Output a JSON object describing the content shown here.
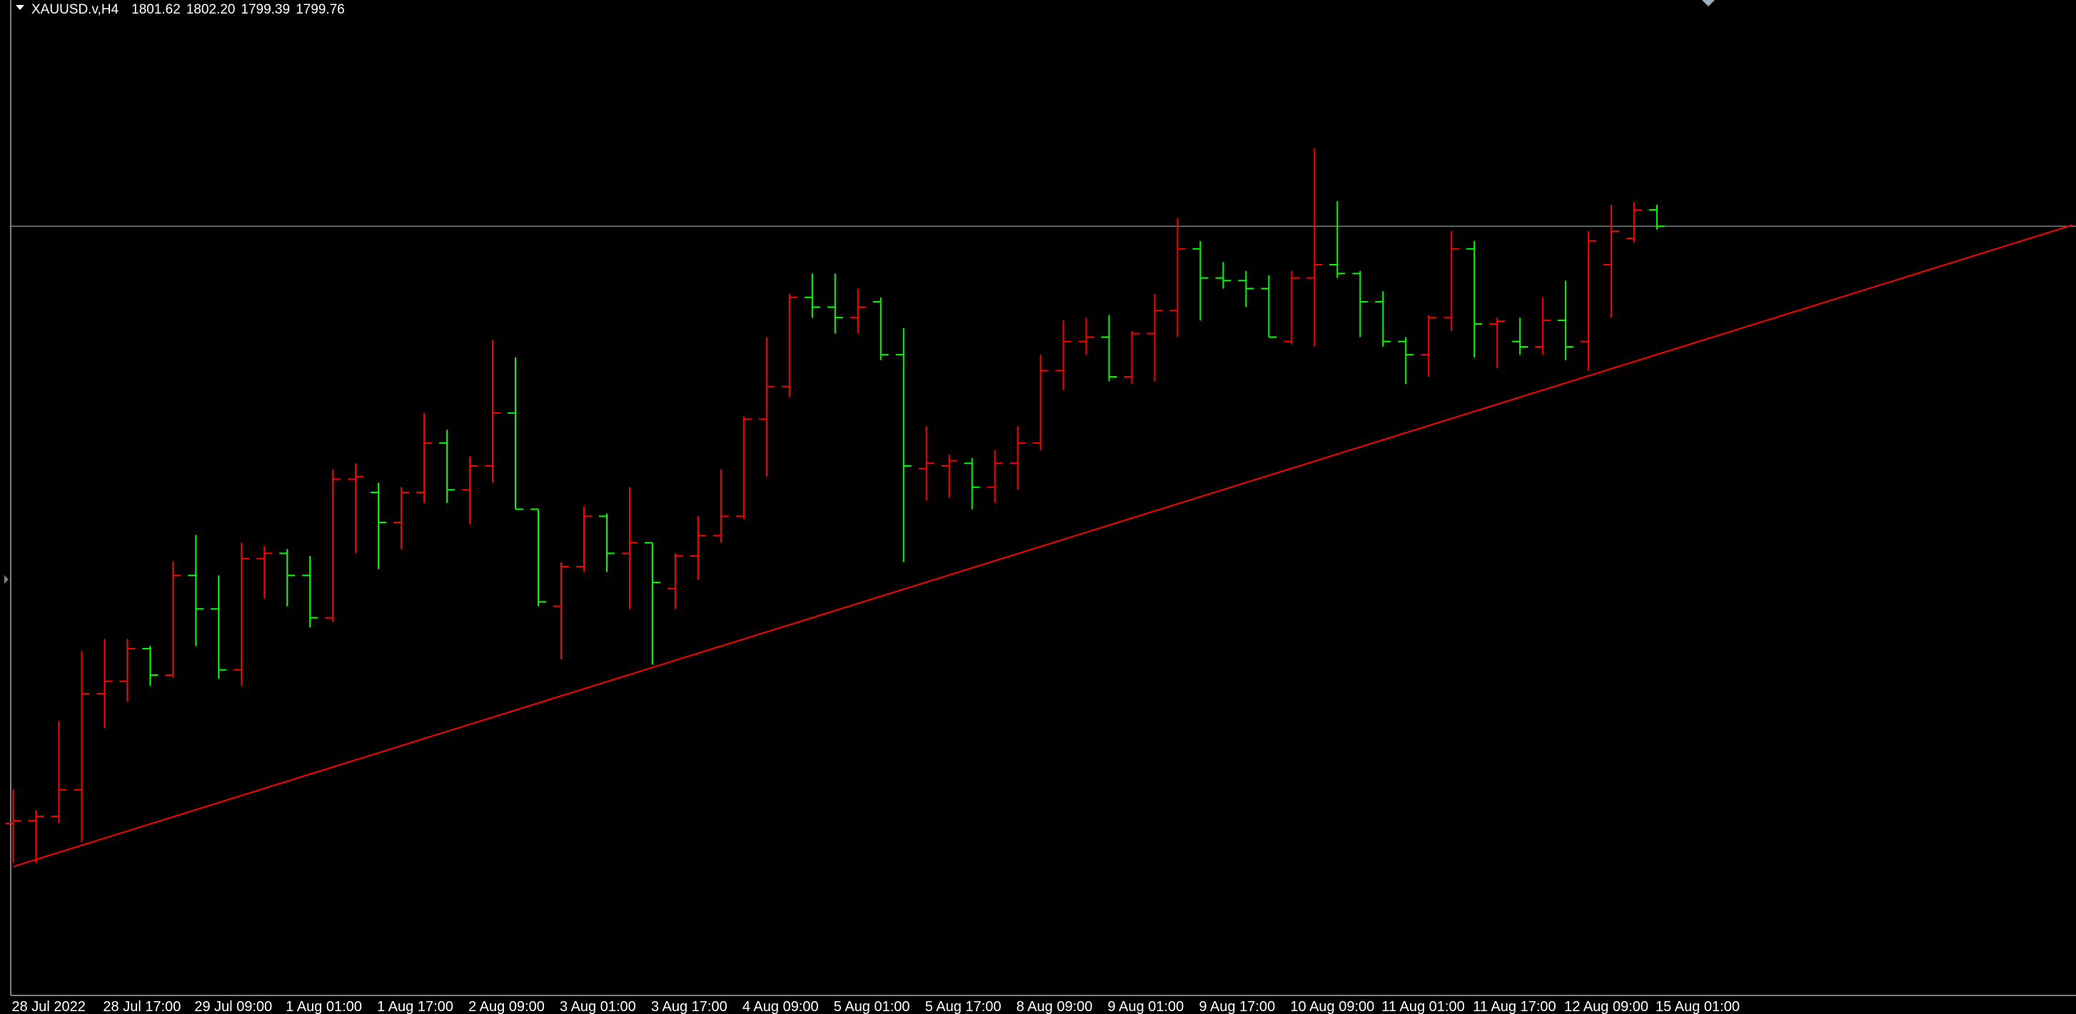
{
  "chart_data": {
    "type": "ohlc",
    "symbol": "XAUUSD.v,H4",
    "header_values": [
      "1801.62",
      "1802.20",
      "1799.39",
      "1799.76"
    ],
    "categories": [
      "28 Jul 2022",
      null,
      null,
      null,
      "28 Jul 17:00",
      null,
      null,
      null,
      "29 Jul 09:00",
      null,
      null,
      null,
      "1 Aug 01:00",
      null,
      null,
      null,
      "1 Aug 17:00",
      null,
      null,
      null,
      "2 Aug 09:00",
      null,
      null,
      null,
      "3 Aug 01:00",
      null,
      null,
      null,
      "3 Aug 17:00",
      null,
      null,
      null,
      "4 Aug 09:00",
      null,
      null,
      null,
      "5 Aug 01:00",
      null,
      null,
      null,
      "5 Aug 17:00",
      null,
      null,
      null,
      "8 Aug 09:00",
      null,
      null,
      null,
      "9 Aug 01:00",
      null,
      null,
      null,
      "9 Aug 17:00",
      null,
      null,
      null,
      "10 Aug 09:00",
      null,
      null,
      null,
      "11 Aug 01:00",
      null,
      null,
      null,
      "11 Aug 17:00",
      null,
      null,
      null,
      "12 Aug 09:00",
      null,
      null,
      null,
      "15 Aug 01:00"
    ],
    "open": [
      1732.1,
      1732.4,
      1732.9,
      1735.9,
      1746.8,
      1748.2,
      1751.9,
      1748.9,
      1760.2,
      1756.4,
      1749.5,
      1762.1,
      1762.7,
      1760.2,
      1755.4,
      1771.1,
      1769.6,
      1766.2,
      1769.6,
      1775.2,
      1769.9,
      1772.6,
      1778.6,
      1767.7,
      1756.7,
      1761.2,
      1766.9,
      1762.7,
      1763.9,
      1758.7,
      1762.4,
      1764.7,
      1766.9,
      1777.9,
      1781.6,
      1791.7,
      1790.6,
      1789.4,
      1791.2,
      1785.2,
      1772.3,
      1772.6,
      1772.9,
      1770.2,
      1772.9,
      1775.2,
      1783.4,
      1786.7,
      1787.2,
      1782.7,
      1787.6,
      1790.2,
      1797.2,
      1793.9,
      1793.6,
      1792.7,
      1786.7,
      1793.9,
      1795.4,
      1794.4,
      1791.2,
      1786.7,
      1785.2,
      1789.4,
      1797.2,
      1788.7,
      1786.7,
      1786.1,
      1789.1,
      1786.7,
      1795.4,
      1798.4,
      1801.62
    ],
    "high": [
      1736.0,
      1733.6,
      1743.7,
      1751.6,
      1753.0,
      1753.0,
      1752.2,
      1761.8,
      1764.8,
      1760.2,
      1763.9,
      1763.5,
      1763.2,
      1762.4,
      1772.2,
      1772.9,
      1770.7,
      1770.2,
      1778.6,
      1776.7,
      1773.7,
      1786.9,
      1784.9,
      1767.7,
      1761.7,
      1768.0,
      1767.2,
      1770.2,
      1763.9,
      1762.7,
      1766.9,
      1772.2,
      1778.2,
      1787.2,
      1792.1,
      1794.4,
      1794.4,
      1792.7,
      1791.7,
      1788.2,
      1777.1,
      1773.9,
      1773.5,
      1774.4,
      1777.1,
      1785.2,
      1789.1,
      1789.4,
      1789.7,
      1787.9,
      1792.1,
      1800.7,
      1798.1,
      1795.7,
      1794.7,
      1794.2,
      1794.7,
      1808.6,
      1802.6,
      1794.7,
      1792.4,
      1787.2,
      1789.7,
      1799.2,
      1798.1,
      1789.4,
      1789.4,
      1791.7,
      1793.6,
      1799.2,
      1802.2,
      1802.5,
      1802.2
    ],
    "low": [
      1727.6,
      1727.6,
      1732.1,
      1730.0,
      1742.9,
      1745.9,
      1747.7,
      1748.6,
      1752.2,
      1748.5,
      1747.7,
      1757.6,
      1756.7,
      1754.3,
      1754.9,
      1762.7,
      1760.9,
      1763.2,
      1768.4,
      1768.4,
      1766.0,
      1770.7,
      1767.7,
      1756.7,
      1750.7,
      1760.6,
      1760.6,
      1756.4,
      1750.1,
      1756.4,
      1759.7,
      1763.9,
      1766.6,
      1771.4,
      1780.4,
      1789.4,
      1787.6,
      1787.6,
      1784.6,
      1761.7,
      1768.7,
      1769.0,
      1767.7,
      1768.4,
      1769.9,
      1774.4,
      1781.2,
      1785.2,
      1782.2,
      1781.9,
      1782.2,
      1787.2,
      1789.1,
      1792.7,
      1790.6,
      1787.2,
      1786.4,
      1786.1,
      1793.9,
      1787.2,
      1786.1,
      1781.9,
      1782.7,
      1787.9,
      1784.9,
      1783.7,
      1785.2,
      1785.2,
      1784.6,
      1783.4,
      1789.4,
      1797.9,
      1799.39
    ],
    "close": [
      1732.4,
      1732.9,
      1735.9,
      1746.8,
      1748.2,
      1751.9,
      1748.9,
      1760.2,
      1756.4,
      1749.5,
      1762.1,
      1762.7,
      1760.2,
      1755.4,
      1771.1,
      1771.4,
      1766.2,
      1769.6,
      1775.2,
      1769.9,
      1772.6,
      1778.6,
      1767.7,
      1757.2,
      1761.2,
      1766.9,
      1762.7,
      1763.9,
      1759.4,
      1762.4,
      1764.7,
      1766.9,
      1777.9,
      1781.6,
      1791.7,
      1790.6,
      1789.4,
      1790.6,
      1785.2,
      1772.6,
      1772.9,
      1773.2,
      1770.2,
      1772.9,
      1775.2,
      1783.4,
      1786.7,
      1787.2,
      1782.7,
      1787.6,
      1790.2,
      1797.2,
      1793.9,
      1793.6,
      1792.7,
      1787.2,
      1793.9,
      1795.4,
      1794.4,
      1791.2,
      1786.7,
      1785.2,
      1789.4,
      1797.2,
      1788.7,
      1789.0,
      1786.1,
      1789.1,
      1786.1,
      1798.1,
      1799.2,
      1801.6,
      1799.76
    ],
    "up_color": "#ff0000",
    "down_color": "#00ff00",
    "ylim": [
      1712.6,
      1825.4
    ],
    "price_line_color": "#808080",
    "trendline": {
      "x": [
        0,
        90.2
      ],
      "values": [
        1727.2,
        1799.9
      ],
      "color": "#ff0000"
    }
  }
}
